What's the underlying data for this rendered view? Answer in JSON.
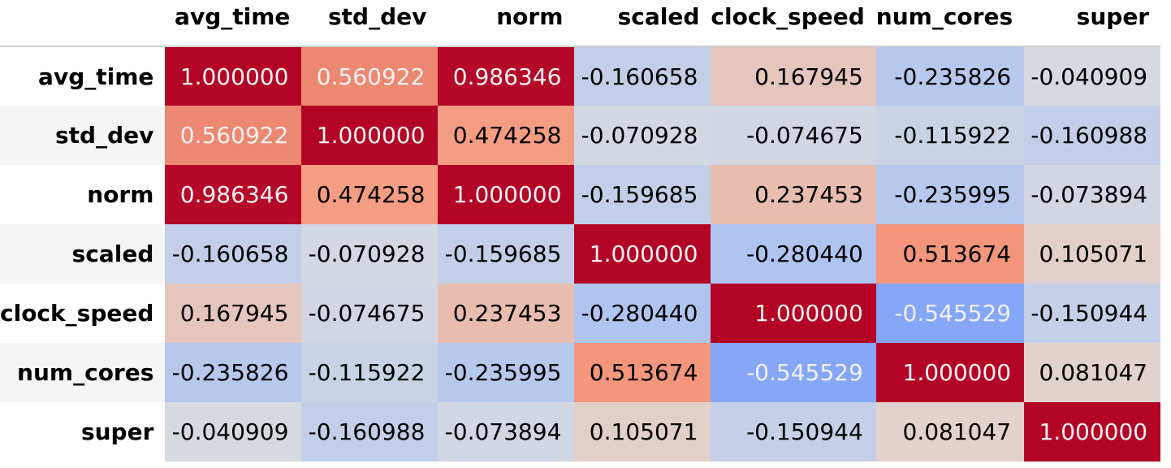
{
  "chart_data": {
    "type": "table",
    "subtype": "correlation-heatmap",
    "colormap": "coolwarm",
    "color_range": [
      -1,
      1
    ],
    "columns": [
      "avg_time",
      "std_dev",
      "norm",
      "scaled",
      "clock_speed",
      "num_cores",
      "super"
    ],
    "rows": [
      "avg_time",
      "std_dev",
      "norm",
      "scaled",
      "clock_speed",
      "num_cores",
      "super"
    ],
    "cells": [
      [
        "1.000000",
        "0.560922",
        "0.986346",
        "-0.160658",
        "0.167945",
        "-0.235826",
        "-0.040909"
      ],
      [
        "0.560922",
        "1.000000",
        "0.474258",
        "-0.070928",
        "-0.074675",
        "-0.115922",
        "-0.160988"
      ],
      [
        "0.986346",
        "0.474258",
        "1.000000",
        "-0.159685",
        "0.237453",
        "-0.235995",
        "-0.073894"
      ],
      [
        "-0.160658",
        "-0.070928",
        "-0.159685",
        "1.000000",
        "-0.280440",
        "0.513674",
        "0.105071"
      ],
      [
        "0.167945",
        "-0.074675",
        "0.237453",
        "-0.280440",
        "1.000000",
        "-0.545529",
        "-0.150944"
      ],
      [
        "-0.235826",
        "-0.115922",
        "-0.235995",
        "0.513674",
        "-0.545529",
        "1.000000",
        "0.081047"
      ],
      [
        "-0.040909",
        "-0.160988",
        "-0.073894",
        "0.105071",
        "-0.150944",
        "0.081047",
        "1.000000"
      ]
    ]
  }
}
